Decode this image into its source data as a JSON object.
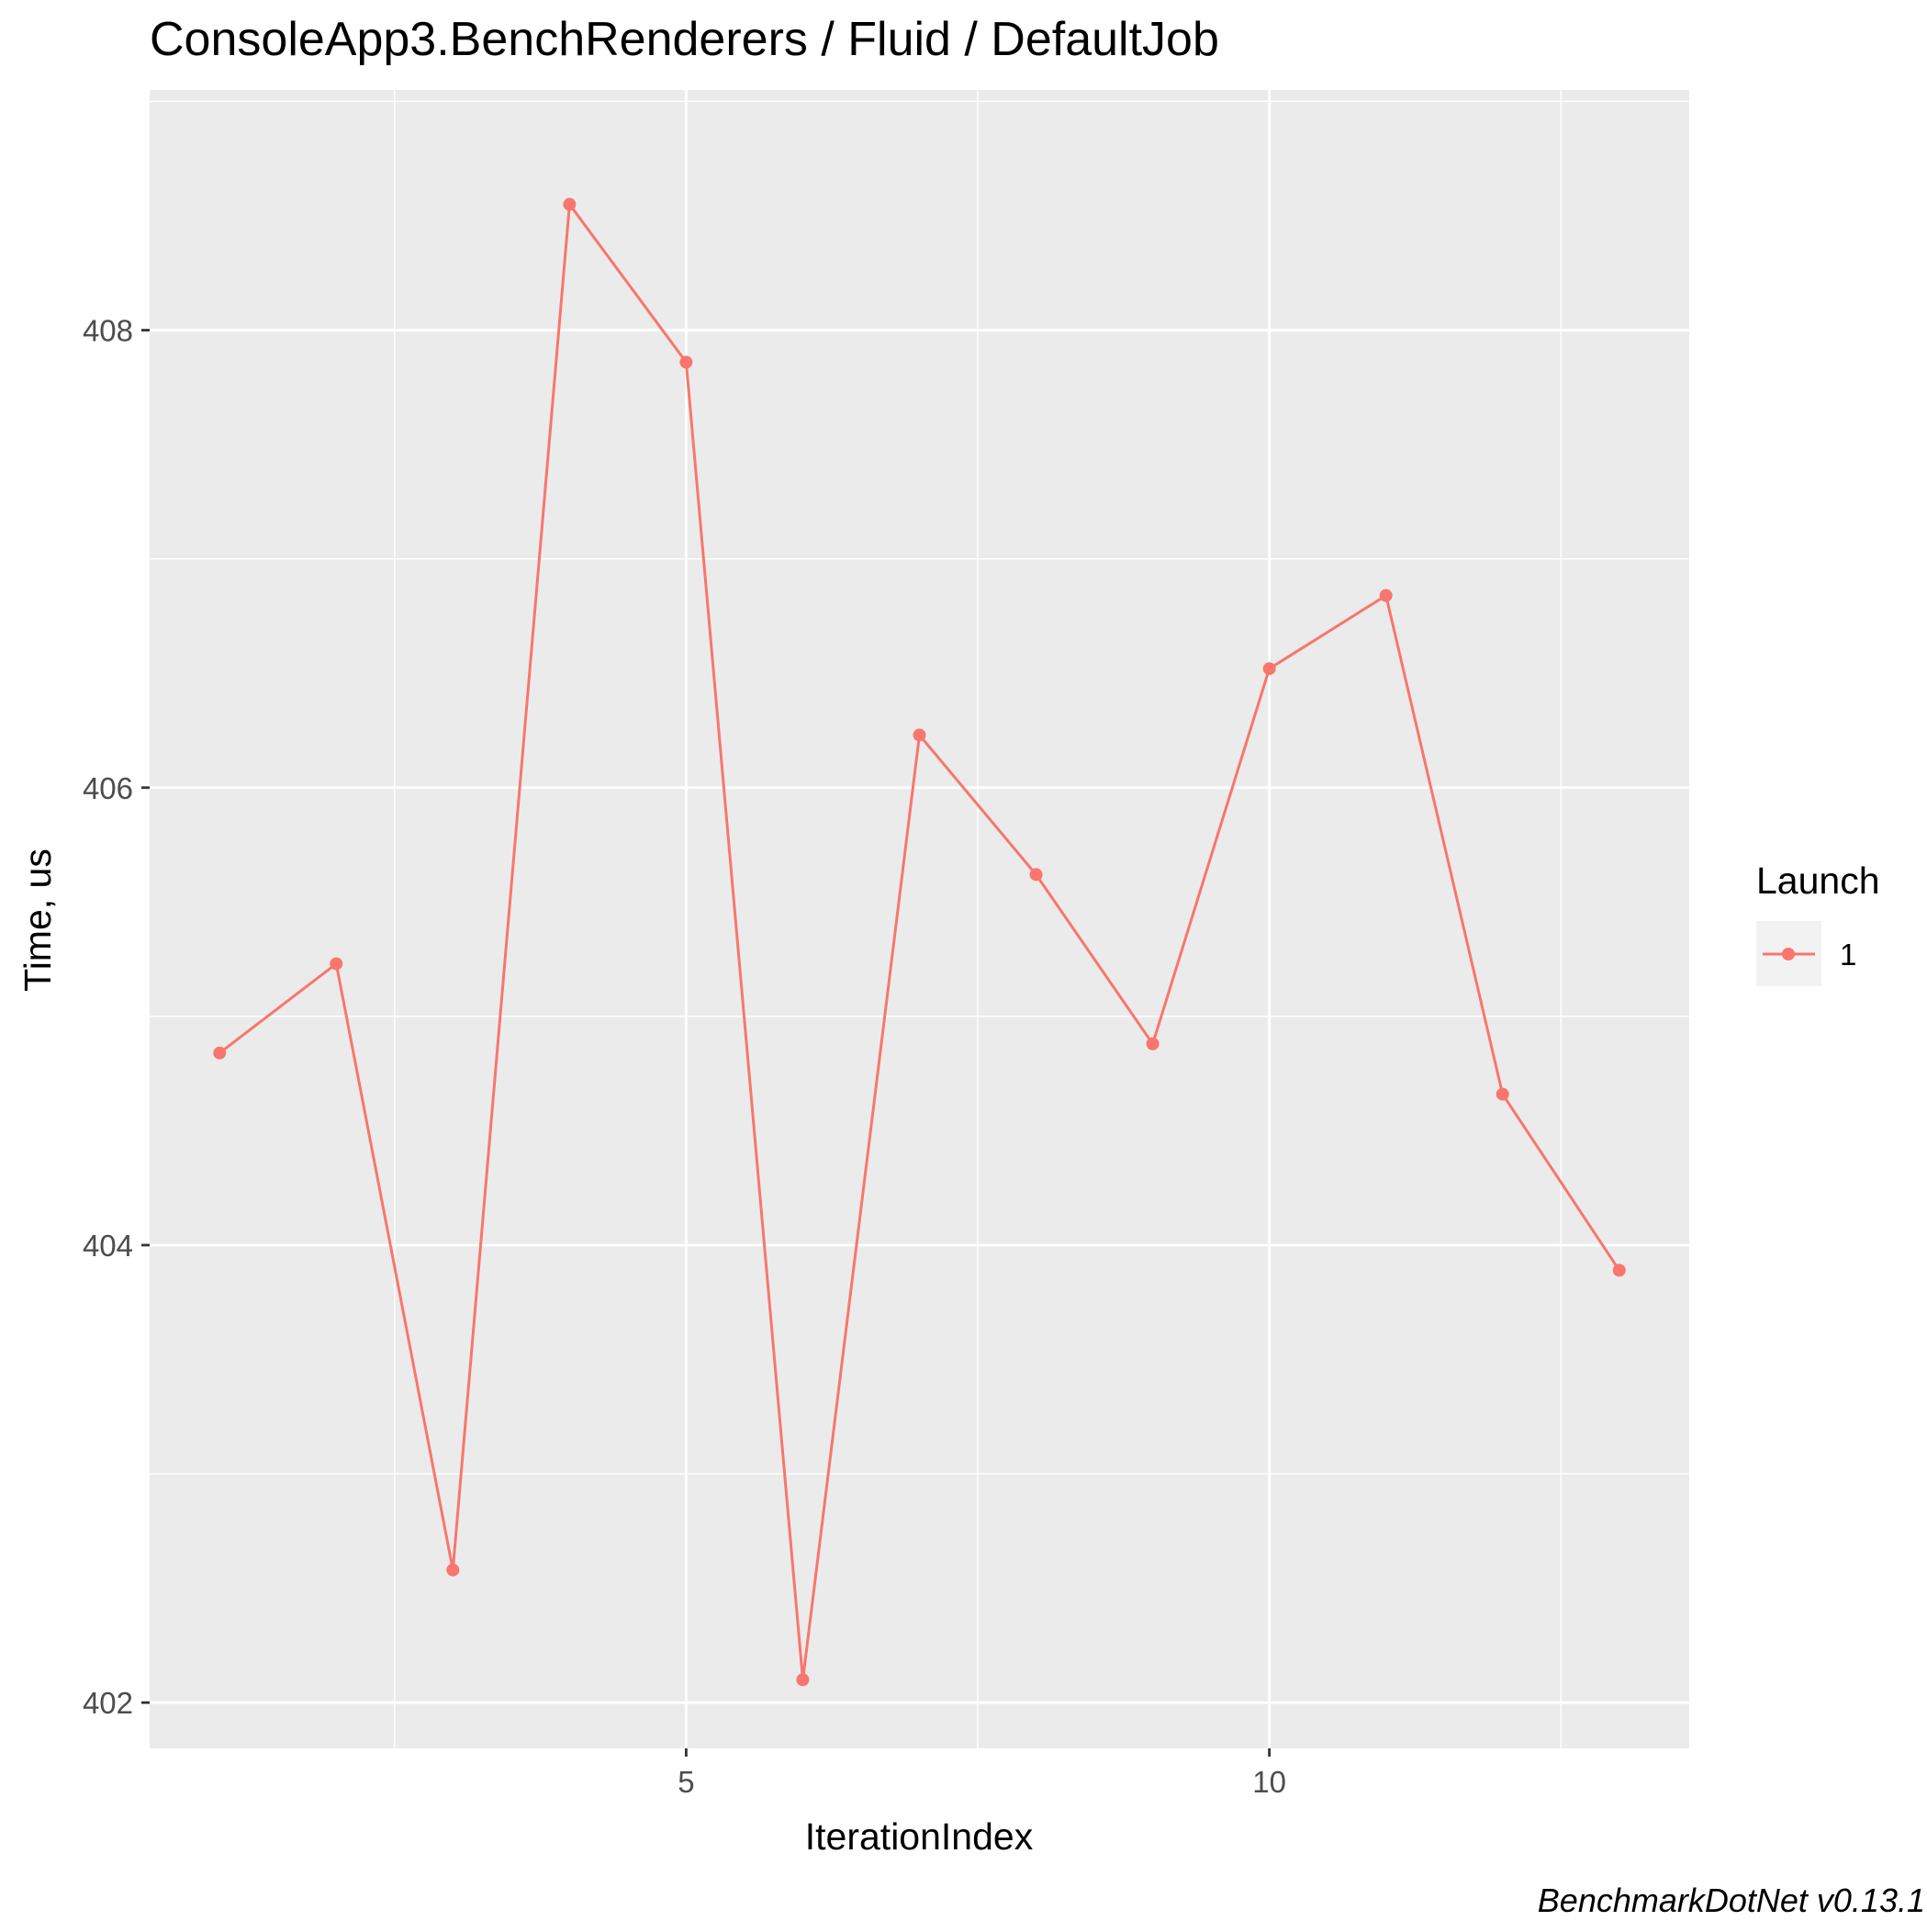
{
  "chart_data": {
    "type": "line",
    "title": "ConsoleApp3.BenchRenderers / Fluid / DefaultJob",
    "xlabel": "IterationIndex",
    "ylabel": "Time, us",
    "caption": "BenchmarkDotNet v0.13.1",
    "x_ticks": [
      5,
      10
    ],
    "x_tick_labels": [
      "5",
      "10"
    ],
    "y_ticks": [
      402,
      404,
      406,
      408
    ],
    "y_tick_labels": [
      "402",
      "404",
      "406",
      "408"
    ],
    "xlim": [
      0.4,
      13.6
    ],
    "ylim": [
      401.8,
      409.05
    ],
    "grid": true,
    "legend": {
      "title": "Launch",
      "position": "right"
    },
    "series": [
      {
        "name": "1",
        "color": "#F8766D",
        "x": [
          1,
          2,
          3,
          4,
          5,
          6,
          7,
          8,
          9,
          10,
          11,
          12,
          13
        ],
        "y": [
          404.84,
          405.23,
          402.58,
          408.55,
          407.86,
          402.1,
          406.23,
          405.62,
          404.88,
          406.52,
          406.84,
          404.66,
          403.89
        ]
      }
    ]
  }
}
